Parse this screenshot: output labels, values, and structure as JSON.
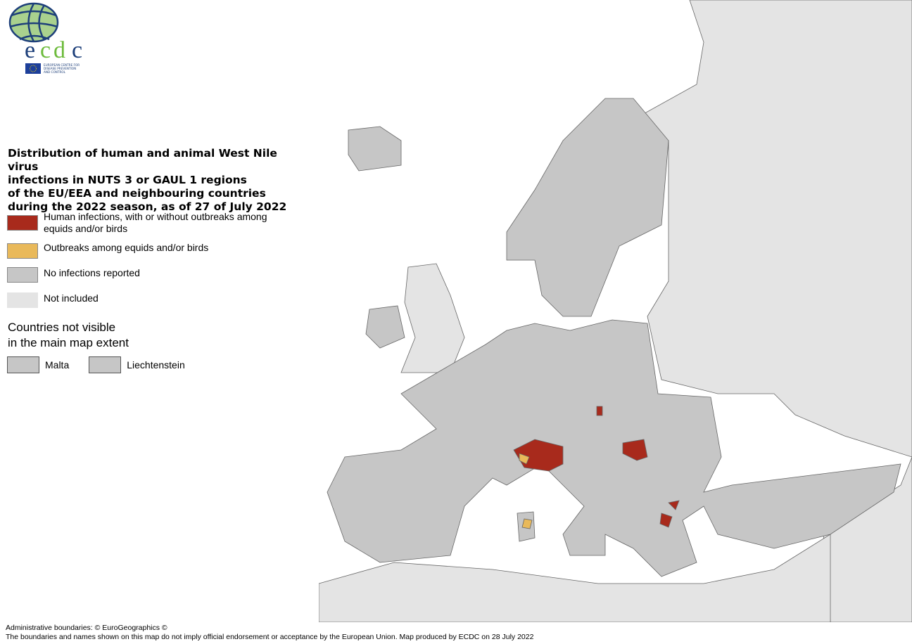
{
  "logo": {
    "text": "ecdc",
    "subtitle": "EUROPEAN CENTRE FOR DISEASE PREVENTION AND CONTROL"
  },
  "title": [
    "Distribution of human and animal West Nile virus",
    "infections in NUTS 3 or GAUL 1 regions",
    "of the EU/EEA and neighbouring countries",
    "during the 2022 season, as of 27 of July 2022"
  ],
  "legend": [
    {
      "label": "Human infections, with or without outbreaks among equids and/or birds",
      "color": "#a82a1c"
    },
    {
      "label": "Outbreaks among equids and/or birds",
      "color": "#e9b95a"
    },
    {
      "label": "No infections reported",
      "color": "#c6c6c6"
    },
    {
      "label": "Not included",
      "color": "#e4e4e4"
    }
  ],
  "not_visible": {
    "heading_1": "Countries not visible",
    "heading_2": "in the main map extent",
    "countries": [
      "Malta",
      "Liechtenstein"
    ]
  },
  "footer": [
    "Administrative boundaries: © EuroGeographics ©",
    "The boundaries and names shown on this map do not imply official endorsement or acceptance by the European Union. Map produced by ECDC on 28 July 2022"
  ]
}
